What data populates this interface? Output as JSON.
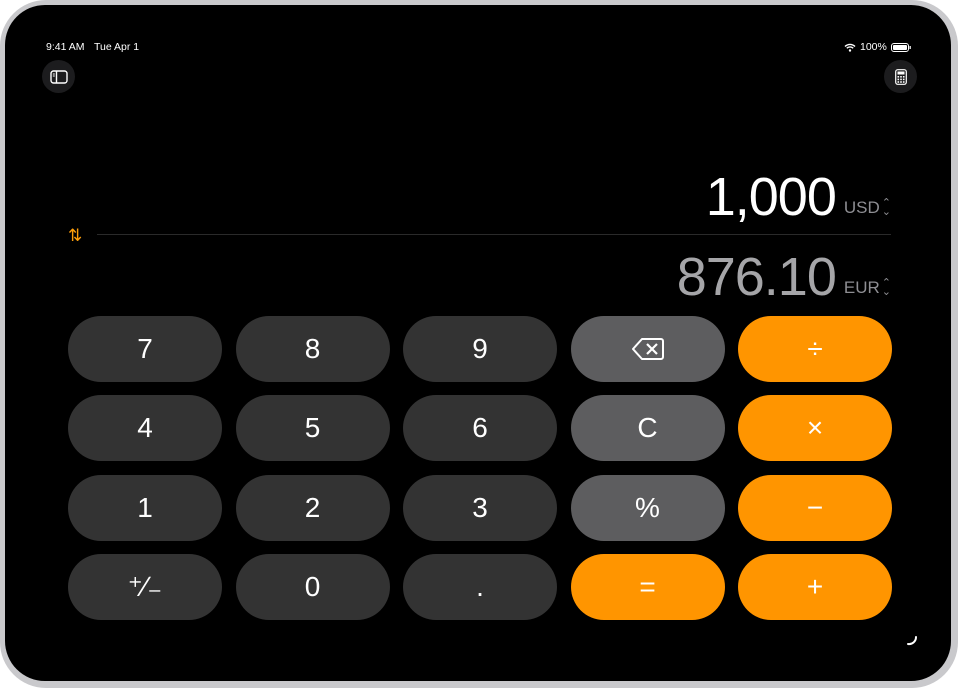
{
  "status_bar": {
    "time": "9:41 AM",
    "date": "Tue Apr 1",
    "battery": "100%",
    "icons": [
      "wifi-icon",
      "battery-icon"
    ]
  },
  "toolbar": {
    "left_icon": "sidebar-icon",
    "right_icon": "calculator-icon"
  },
  "converter": {
    "source_value": "1,000",
    "source_currency": "USD",
    "target_value": "876.10",
    "target_currency": "EUR",
    "swap_icon": "swap-arrows-icon"
  },
  "keypad": {
    "rows": [
      [
        {
          "label": "7",
          "style": "dark"
        },
        {
          "label": "8",
          "style": "dark"
        },
        {
          "label": "9",
          "style": "dark"
        },
        {
          "label": "⌫",
          "style": "mid",
          "icon": "backspace-icon"
        },
        {
          "label": "÷",
          "style": "orange"
        }
      ],
      [
        {
          "label": "4",
          "style": "dark"
        },
        {
          "label": "5",
          "style": "dark"
        },
        {
          "label": "6",
          "style": "dark"
        },
        {
          "label": "C",
          "style": "mid"
        },
        {
          "label": "×",
          "style": "orange"
        }
      ],
      [
        {
          "label": "1",
          "style": "dark"
        },
        {
          "label": "2",
          "style": "dark"
        },
        {
          "label": "3",
          "style": "dark"
        },
        {
          "label": "%",
          "style": "mid"
        },
        {
          "label": "−",
          "style": "orange"
        }
      ],
      [
        {
          "label": "⁺∕₋",
          "style": "dark"
        },
        {
          "label": "0",
          "style": "dark"
        },
        {
          "label": ".",
          "style": "dark"
        },
        {
          "label": "=",
          "style": "orange"
        },
        {
          "label": "+",
          "style": "orange"
        }
      ]
    ]
  },
  "colors": {
    "accent": "#ff9500",
    "key_dark": "#333333",
    "key_mid": "#5d5d5f",
    "background": "#000000"
  }
}
